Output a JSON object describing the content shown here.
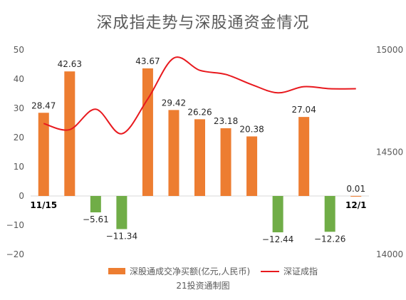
{
  "chart_data": {
    "type": "bar",
    "title": "深成指走势与深股通资金情况",
    "source": "21投资通制图",
    "categories": [
      "11/15",
      "",
      "",
      "",
      "",
      "",
      "",
      "",
      "",
      "",
      "",
      "",
      "12/1"
    ],
    "series": [
      {
        "name": "深股通成交净买额(亿元,人民币)",
        "type": "bar",
        "axis": "left",
        "values": [
          28.47,
          42.63,
          -5.61,
          -11.34,
          43.67,
          29.42,
          26.26,
          23.18,
          20.38,
          -12.44,
          27.04,
          -12.26,
          0.01
        ],
        "labels": [
          "28.47",
          "42.63",
          "−5.61",
          "−11.34",
          "43.67",
          "29.42",
          "26.26",
          "23.18",
          "20.38",
          "−12.44",
          "27.04",
          "−12.26",
          "0.01"
        ]
      },
      {
        "name": "深证成指",
        "type": "line",
        "axis": "right",
        "values": [
          14640,
          14610,
          14710,
          14590,
          14760,
          14960,
          14900,
          14880,
          14830,
          14790,
          14820,
          14810,
          14810
        ]
      }
    ],
    "y_left": {
      "ticks": [
        "50",
        "40",
        "30",
        "20",
        "10",
        "0",
        "−10",
        "−20"
      ],
      "lim": [
        -20,
        50
      ]
    },
    "y_right": {
      "ticks": [
        "15000",
        "14500",
        "14000"
      ],
      "lim": [
        14000,
        15000
      ]
    },
    "grid": false,
    "legend": "bottom",
    "colors": {
      "positive": "#ED7D31",
      "negative": "#70AD47",
      "line": "#E8191E",
      "text": "#595959"
    }
  }
}
